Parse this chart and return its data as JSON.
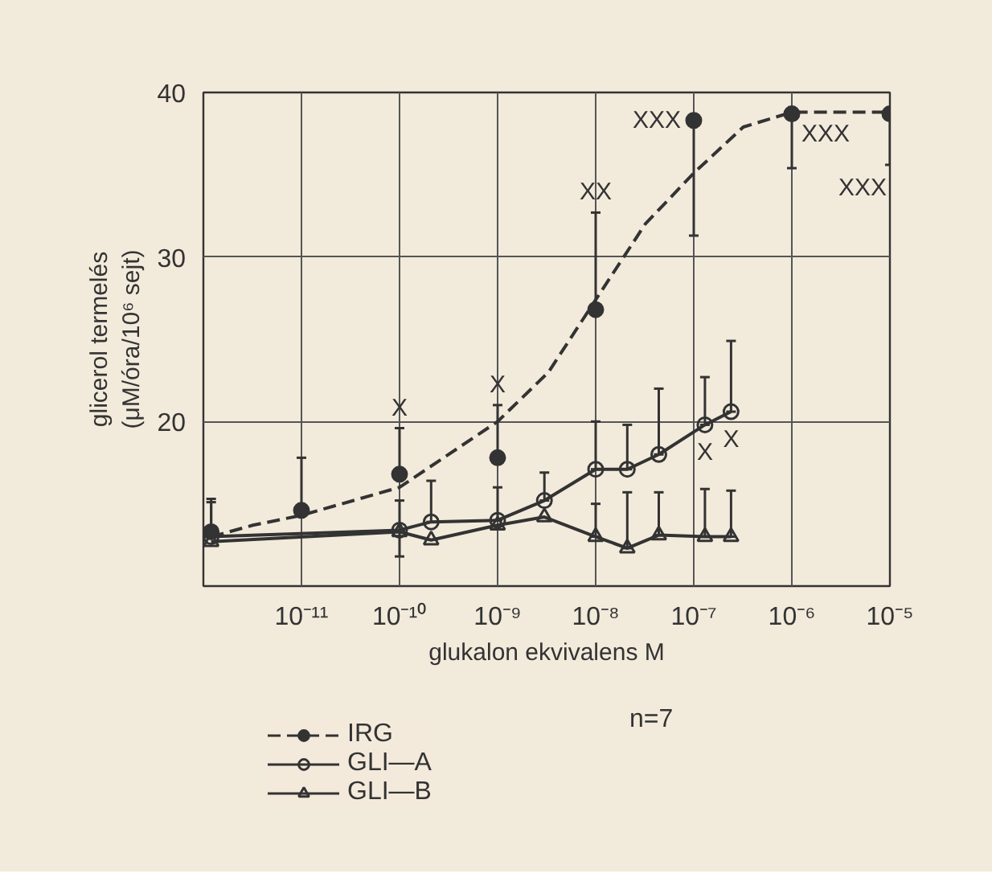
{
  "chart_data": {
    "type": "line",
    "ylabel": "glicerol termelés\n(μM/óra/10⁶ sejt)",
    "xlabel": "glukalon ekvivalens M",
    "log": "x",
    "xlim": [
      1e-12,
      1e-05
    ],
    "ylim": [
      10,
      40
    ],
    "xticks": [
      {
        "value": 1e-11,
        "label": "10⁻¹¹"
      },
      {
        "value": 1e-10,
        "label": "10⁻¹⁰"
      },
      {
        "value": 1e-09,
        "label": "10⁻⁹"
      },
      {
        "value": 1e-08,
        "label": "10⁻⁸"
      },
      {
        "value": 1e-07,
        "label": "10⁻⁷"
      },
      {
        "value": 1e-06,
        "label": "10⁻⁶"
      },
      {
        "value": 1e-05,
        "label": "10⁻⁵"
      }
    ],
    "yticks": [
      20,
      30,
      40
    ],
    "grid": true,
    "legend": "bottom left",
    "series": [
      {
        "name": "IRG",
        "type": "scatter",
        "marker": "circle",
        "line_style": "dashed",
        "color": "#333333",
        "x": [
          1.2e-12,
          1e-11,
          1e-10,
          1e-09,
          1e-08,
          1e-07,
          1e-06,
          1e-05
        ],
        "values": [
          13.3,
          14.6,
          16.8,
          17.8,
          26.8,
          38.3,
          38.7,
          38.7
        ],
        "errors": [
          [
            13.3,
            15.1
          ],
          [
            14.6,
            17.8
          ],
          [
            16.8,
            19.6
          ],
          [
            17.8,
            21.0
          ],
          [
            26.8,
            32.7
          ],
          [
            31.3,
            38.3
          ],
          [
            35.4,
            38.7
          ],
          [
            35.6,
            38.7
          ]
        ]
      },
      {
        "name": "GLI—A",
        "type": "line",
        "marker": "circle",
        "line_style": "solid",
        "color": "#333333",
        "x": [
          1.2e-12,
          1e-10,
          2.1e-10,
          1e-09,
          3e-09,
          1e-08,
          2.1e-08,
          4.4e-08,
          1.3e-07,
          2.4e-07
        ],
        "values": [
          13.0,
          13.4,
          13.9,
          14.0,
          15.2,
          17.1,
          17.1,
          18.0,
          19.8,
          20.6
        ],
        "errors": [
          [
            13.0,
            15.3
          ],
          [
            11.8,
            15.2
          ],
          [
            13.9,
            16.4
          ],
          [
            14.0,
            16.0
          ],
          [
            15.2,
            16.9
          ],
          [
            17.1,
            20.0
          ],
          [
            17.1,
            19.8
          ],
          [
            18.0,
            22.0
          ],
          [
            19.8,
            22.7
          ],
          [
            20.6,
            24.9
          ]
        ]
      },
      {
        "name": "GLI—B",
        "type": "line",
        "marker": "triangle",
        "line_style": "solid",
        "color": "#333333",
        "x": [
          1.2e-12,
          1e-10,
          2.1e-10,
          1e-09,
          3e-09,
          1e-08,
          2.1e-08,
          4.4e-08,
          1.3e-07,
          2.4e-07
        ],
        "values": [
          12.7,
          13.3,
          12.8,
          13.7,
          14.2,
          13.0,
          12.3,
          13.1,
          13.0,
          13.0
        ],
        "errors": [
          null,
          null,
          null,
          null,
          null,
          [
            13.0,
            15.0
          ],
          [
            12.3,
            15.7
          ],
          [
            13.1,
            15.7
          ],
          [
            13.0,
            15.9
          ],
          [
            13.0,
            15.8
          ]
        ]
      },
      {
        "line_style": "dashed",
        "marker": "none",
        "color": "#333333",
        "x": [
          1.2e-12,
          3.2e-12,
          1e-11,
          1e-10,
          1e-09,
          3.3e-09,
          1e-08,
          3.2e-08,
          1e-07,
          3.2e-07,
          1e-06,
          1e-05
        ],
        "values": [
          13.0,
          13.7,
          14.3,
          16.0,
          20.0,
          23.0,
          27.4,
          32.0,
          35.1,
          37.9,
          38.8,
          38.8
        ]
      }
    ],
    "annotations": [
      {
        "text": "X",
        "x": 1e-10,
        "y": 19.6
      },
      {
        "text": "X",
        "x": 1e-09,
        "y": 21.0
      },
      {
        "text": "XX",
        "x": 1e-08,
        "y": 32.7
      },
      {
        "text": "XXX",
        "x": 1e-07,
        "y": 38.3
      },
      {
        "text": "XXX",
        "x": 1e-06,
        "y": 38.7
      },
      {
        "text": "XXX",
        "x": 1e-05,
        "y": 35.6
      },
      {
        "text": "X",
        "x": 1.3e-07,
        "y": 19.8
      },
      {
        "text": "X",
        "x": 2.4e-07,
        "y": 20.6
      },
      "n=7"
    ]
  }
}
